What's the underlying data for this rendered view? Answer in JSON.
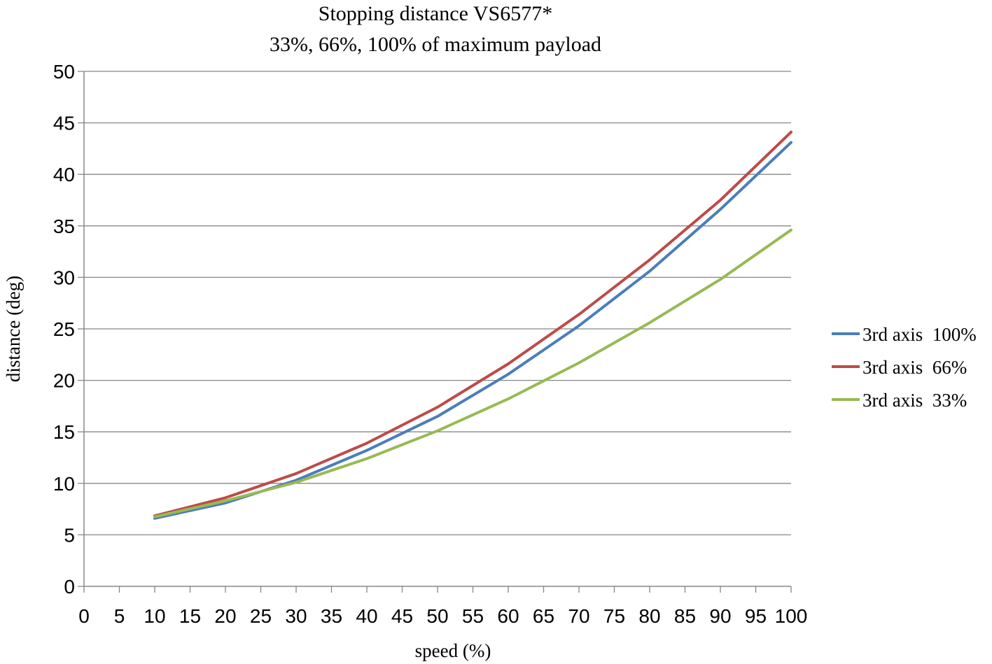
{
  "chart_data": {
    "type": "line",
    "title": "Stopping distance VS6577*",
    "subtitle": "33%, 66%, 100% of maximum payload",
    "xlabel": "speed (%)",
    "ylabel": "distance (deg)",
    "xlim": [
      0,
      100
    ],
    "ylim": [
      0,
      50
    ],
    "x_ticks": [
      0,
      5,
      10,
      15,
      20,
      25,
      30,
      35,
      40,
      45,
      50,
      55,
      60,
      65,
      70,
      75,
      80,
      85,
      90,
      95,
      100
    ],
    "y_ticks": [
      0,
      5,
      10,
      15,
      20,
      25,
      30,
      35,
      40,
      45,
      50
    ],
    "grid": "horizontal",
    "legend_position": "right",
    "x": [
      10,
      20,
      30,
      40,
      50,
      60,
      70,
      80,
      90,
      100
    ],
    "series": [
      {
        "name": "3rd axis  100%",
        "color": "#4a7ebb",
        "values": [
          6.6,
          8.1,
          10.3,
          13.2,
          16.5,
          20.6,
          25.3,
          30.6,
          36.6,
          43.1
        ]
      },
      {
        "name": "3rd axis  66%",
        "color": "#be4b48",
        "values": [
          6.85,
          8.6,
          10.95,
          13.9,
          17.4,
          21.6,
          26.4,
          31.7,
          37.5,
          44.1
        ]
      },
      {
        "name": "3rd axis  33%",
        "color": "#98b954",
        "values": [
          6.75,
          8.3,
          10.1,
          12.4,
          15.1,
          18.2,
          21.7,
          25.6,
          29.8,
          34.6
        ]
      }
    ]
  }
}
